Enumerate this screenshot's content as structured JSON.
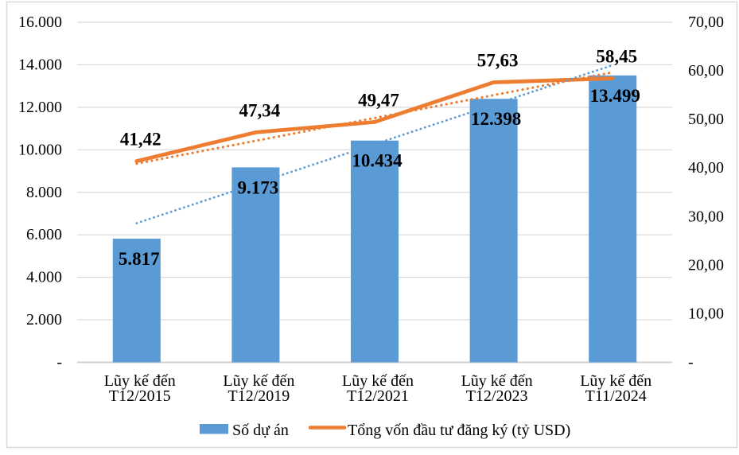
{
  "chart_data": {
    "type": "combo",
    "title": "",
    "categories": [
      {
        "line1": "Lũy kế đến",
        "line2": "T12/2015"
      },
      {
        "line1": "Lũy kế đến",
        "line2": "T12/2019"
      },
      {
        "line1": "Lũy kế đến",
        "line2": "T12/2021"
      },
      {
        "line1": "Lũy kế đến",
        "line2": "T12/2023"
      },
      {
        "line1": "Lũy kế đến",
        "line2": "T11/2024"
      }
    ],
    "series": [
      {
        "name": "Số dự án",
        "type": "bar",
        "axis": "left",
        "color": "#5B9BD5",
        "values": [
          5817,
          9173,
          10434,
          12398,
          13499
        ],
        "data_labels": [
          "5.817",
          "9.173",
          "10.434",
          "12.398",
          "13.499"
        ],
        "trendline": {
          "type": "linear",
          "style": "dotted",
          "color": "#5B9BD5"
        }
      },
      {
        "name": "Tổng vốn đầu tư đăng ký (tỷ USD)",
        "type": "line",
        "axis": "right",
        "color": "#ED7D31",
        "values": [
          41.42,
          47.34,
          49.47,
          57.63,
          58.45
        ],
        "data_labels": [
          "41,42",
          "47,34",
          "49,47",
          "57,63",
          "58,45"
        ],
        "trendline": {
          "type": "linear",
          "style": "dotted",
          "color": "#ED7D31",
          "start_value": 40.9,
          "end_value": 59.7
        }
      }
    ],
    "left_axis": {
      "min": 0,
      "max": 16000,
      "step": 2000,
      "tick_labels": [
        "16.000",
        "14.000",
        "12.000",
        "10.000",
        "8.000",
        "6.000",
        "4.000",
        "2.000",
        "-"
      ]
    },
    "right_axis": {
      "min": 0,
      "max": 70,
      "step": 10,
      "tick_labels": [
        "70,00",
        "60,00",
        "50,00",
        "40,00",
        "30,00",
        "20,00",
        "10,00",
        "-"
      ]
    },
    "legend": {
      "position": "bottom",
      "entries": [
        {
          "label": "Số dự án",
          "swatch": "bar",
          "color": "#5B9BD5"
        },
        {
          "label": "Tổng vốn đầu tư đăng ký (tỷ USD)",
          "swatch": "line",
          "color": "#ED7D31"
        }
      ]
    },
    "grid": true,
    "colors": {
      "gridline": "#D9D9D9",
      "axis_line": "#CFCFCF",
      "frame": "#D9D9D9",
      "text": "#000000"
    }
  }
}
